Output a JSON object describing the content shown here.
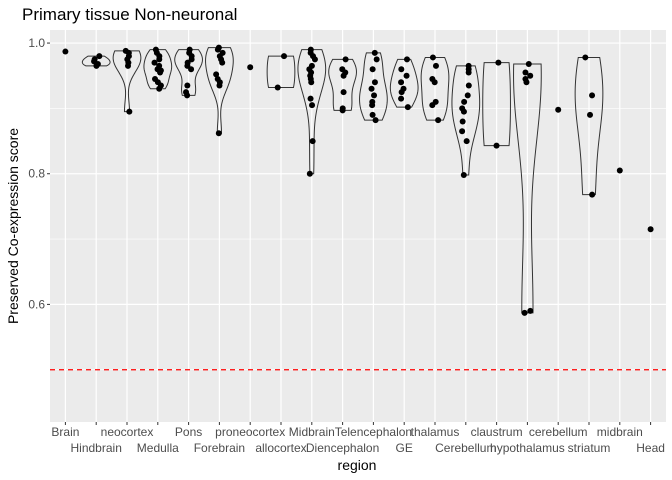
{
  "chart_data": {
    "type": "violin",
    "title": "Primary tissue Non-neuronal",
    "xlabel": "region",
    "ylabel": "Preserved Co-expression score",
    "ylim": [
      0.42,
      1.02
    ],
    "yticks": [
      0.6,
      0.8,
      1.0
    ],
    "ytick_labels": [
      "0.6",
      "0.8",
      "1.0"
    ],
    "grid": true,
    "reference_line": {
      "value": 0.5,
      "color": "#ff0000",
      "style": "dashed"
    },
    "point_color": "#000000",
    "violin_stroke": "#333333",
    "panel_background": "#ebebeb",
    "categories": [
      "Brain",
      "Hindbrain",
      "neocortex",
      "Medulla",
      "Pons",
      "Forebrain",
      "proneocortex",
      "allocortex",
      "Midbrain",
      "Diencephalon",
      "Telencephalon",
      "GE",
      "thalamus",
      "Cerebellum",
      "claustrum",
      "hypothalamus",
      "cerebellum",
      "striatum",
      "midbrain",
      "Head"
    ],
    "points": [
      [
        0.987
      ],
      [
        0.98,
        0.975,
        0.972,
        0.968,
        0.965
      ],
      [
        0.988,
        0.985,
        0.98,
        0.975,
        0.97,
        0.965,
        0.895
      ],
      [
        0.99,
        0.985,
        0.98,
        0.975,
        0.97,
        0.965,
        0.96,
        0.958,
        0.955,
        0.945,
        0.94,
        0.935,
        0.93
      ],
      [
        0.99,
        0.985,
        0.98,
        0.975,
        0.97,
        0.965,
        0.96,
        0.935,
        0.925,
        0.92
      ],
      [
        0.993,
        0.99,
        0.985,
        0.98,
        0.975,
        0.97,
        0.952,
        0.945,
        0.94,
        0.935,
        0.862
      ],
      [
        0.963
      ],
      [
        0.98,
        0.932
      ],
      [
        0.99,
        0.985,
        0.98,
        0.975,
        0.965,
        0.96,
        0.955,
        0.95,
        0.945,
        0.94,
        0.915,
        0.905,
        0.85,
        0.8
      ],
      [
        0.975,
        0.96,
        0.955,
        0.95,
        0.925,
        0.9,
        0.897
      ],
      [
        0.985,
        0.975,
        0.96,
        0.94,
        0.93,
        0.92,
        0.91,
        0.905,
        0.89,
        0.882
      ],
      [
        0.975,
        0.96,
        0.95,
        0.94,
        0.93,
        0.925,
        0.915,
        0.902
      ],
      [
        0.978,
        0.965,
        0.945,
        0.94,
        0.91,
        0.905,
        0.882
      ],
      [
        0.965,
        0.96,
        0.955,
        0.935,
        0.92,
        0.91,
        0.9,
        0.895,
        0.88,
        0.865,
        0.85,
        0.798
      ],
      [
        0.97,
        0.843
      ],
      [
        0.968,
        0.955,
        0.95,
        0.945,
        0.94,
        0.59,
        0.587
      ],
      [
        0.898
      ],
      [
        0.978,
        0.92,
        0.89,
        0.768
      ],
      [
        0.805
      ],
      [
        0.715
      ]
    ]
  }
}
